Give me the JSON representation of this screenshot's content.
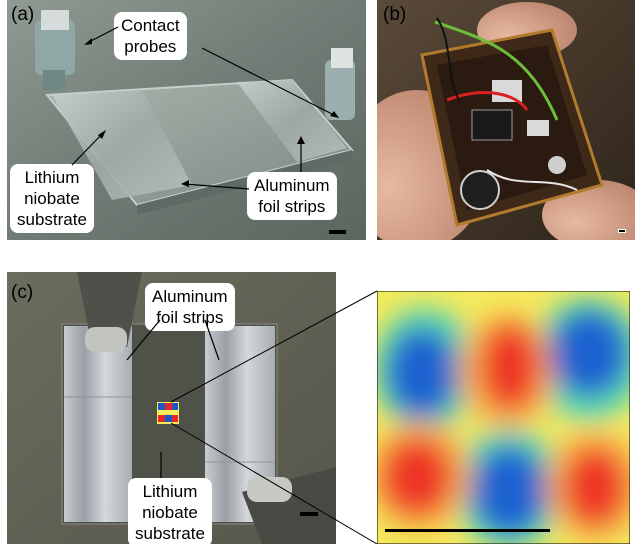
{
  "panel_a": {
    "label": "(a)",
    "callouts": {
      "contact_probes": [
        "Contact",
        "probes"
      ],
      "lithium_niobate": [
        "Lithium",
        "niobate",
        "substrate"
      ],
      "aluminum_foil": [
        "Aluminum",
        "foil strips"
      ]
    }
  },
  "panel_b": {
    "label": "(b)"
  },
  "panel_c": {
    "label": "(c)",
    "callouts": {
      "aluminum_foil": [
        "Aluminum",
        "foil strips"
      ],
      "lithium_niobate": [
        "Lithium",
        "niobate",
        "substrate"
      ]
    }
  },
  "colors": {
    "field_positive": "#e8262a",
    "field_negative": "#1a58c8",
    "field_zero": "#f7ec5a"
  }
}
